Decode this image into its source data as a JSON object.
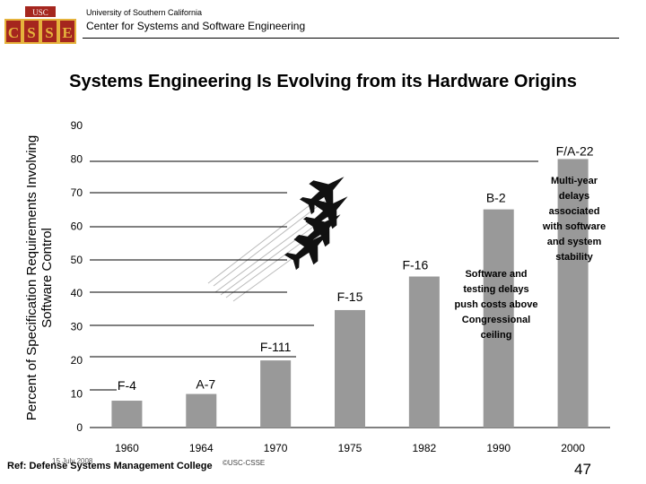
{
  "header": {
    "logo_text": "USC",
    "logo_letters": [
      "C",
      "S",
      "S",
      "E"
    ],
    "university": "University of Southern California",
    "center": "Center for Systems and Software Engineering"
  },
  "title": "Systems Engineering Is Evolving from its Hardware Origins",
  "colors": {
    "bar": "#999999",
    "logo_red": "#a5261e",
    "logo_gold": "#e5b33c"
  },
  "chart_data": {
    "type": "bar",
    "title": "Systems Engineering Is Evolving from its Hardware Origins",
    "ylabel": "Percent of Specification Requirements Involving Software Control",
    "xlabel": "",
    "ylim": [
      0,
      90
    ],
    "yticks": [
      "0",
      "10",
      "20",
      "30",
      "40",
      "50",
      "60",
      "70",
      "80",
      "90"
    ],
    "categories": [
      "1960",
      "1964",
      "1970",
      "1975",
      "1982",
      "1990",
      "2000"
    ],
    "values": [
      8,
      10,
      20,
      35,
      45,
      65,
      80
    ],
    "bar_labels": [
      "F-4",
      "A-7",
      "F-111",
      "F-15",
      "F-16",
      "B-2",
      "F/A-22"
    ],
    "grid": false,
    "annotations": [
      "Software and testing delays push costs above Congressional ceiling",
      "Multi-year delays associated with software and system stability"
    ]
  },
  "footer": {
    "reference": "Ref: Defense Systems Management College",
    "date": "15 July 2008",
    "copyright": "©USC-CSSE",
    "page": "47"
  }
}
